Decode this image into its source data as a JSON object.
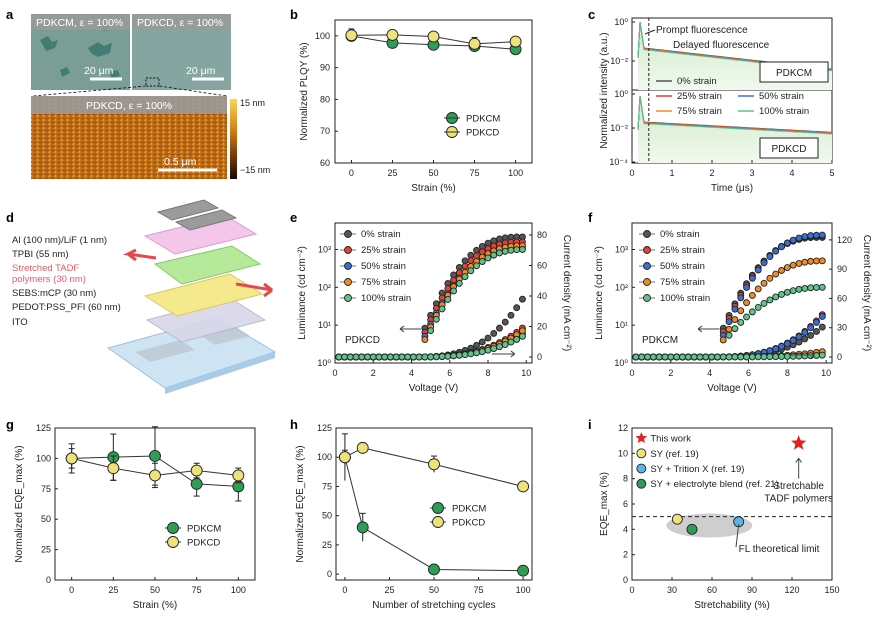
{
  "panel_labels": {
    "a": "a",
    "b": "b",
    "c": "c",
    "d": "d",
    "e": "e",
    "f": "f",
    "g": "g",
    "h": "h",
    "i": "i"
  },
  "colors": {
    "green": "#2e9e57",
    "yellow": "#efe27a",
    "black_series": "#555555",
    "red_series": "#e2413a",
    "blue_series": "#3a6fd1",
    "orange_series": "#f08a22",
    "lightgreen_series": "#5fc38a",
    "red_star": "#e32222",
    "sky": "#5bb4e6",
    "afm_low": "#3a1a05",
    "afm_high": "#f3c12d"
  },
  "panel_a": {
    "img1_label": "PDKCM, ε = 100%",
    "img2_label": "PDKCD, ε = 100%",
    "scale1": "20 μm",
    "scale2": "20 μm",
    "afm_label": "PDKCD, ε = 100%",
    "afm_scale": "0.5 μm",
    "cbar_top": "15 nm",
    "cbar_bottom": "−15 nm"
  },
  "panel_d": {
    "layers": [
      {
        "text": "Al (100 nm)/LiF (1 nm)",
        "color": "#222"
      },
      {
        "text": "TPBI (55 nm)",
        "color": "#222"
      },
      {
        "text": "Stretched TADF",
        "color": "#e85a6a"
      },
      {
        "text": "polymers (30 nm)",
        "color": "#e85a6a"
      },
      {
        "text": "SEBS:mCP (30 nm)",
        "color": "#222"
      },
      {
        "text": "PEDOT:PSS_PFI (60 nm)",
        "color": "#222"
      },
      {
        "text": "ITO",
        "color": "#222"
      }
    ]
  },
  "chart_data": [
    {
      "id": "b",
      "type": "line",
      "xlabel": "Strain (%)",
      "ylabel": "Normalized PLQY (%)",
      "xlim": [
        -10,
        110
      ],
      "ylim": [
        60,
        105
      ],
      "xticks": [
        "0",
        "25",
        "50",
        "75",
        "100"
      ],
      "yticks": [
        "60",
        "70",
        "80",
        "90",
        "100"
      ],
      "series": [
        {
          "name": "PDKCM",
          "x": [
            0,
            25,
            50,
            75,
            100
          ],
          "y": [
            100,
            97.8,
            97.2,
            96.8,
            95.8
          ],
          "err": [
            1.5,
            1,
            1,
            1,
            1
          ],
          "color": "#2e9e57"
        },
        {
          "name": "PDKCD",
          "x": [
            0,
            25,
            50,
            75,
            100
          ],
          "y": [
            100.2,
            100.3,
            99.8,
            97.5,
            98.2
          ],
          "err": [
            2,
            1.5,
            1,
            2,
            1.5
          ],
          "color": "#efe27a"
        }
      ],
      "legend_position": "lower-right"
    },
    {
      "id": "c",
      "type": "line",
      "xlabel": "Time (μs)",
      "ylabel": "Normalized intensity (a.u.)",
      "xlim": [
        0,
        5
      ],
      "xticks": [
        "0",
        "1",
        "2",
        "3",
        "4",
        "5"
      ],
      "yticks_top": [
        "10⁰",
        "10⁻²"
      ],
      "yticks_bottom": [
        "10⁰",
        "10⁻²",
        "10⁻⁴"
      ],
      "labels": {
        "prompt": "Prompt fluorescence",
        "delayed": "Delayed fluorescence",
        "top_box": "PDKCM",
        "bottom_box": "PDKCD"
      },
      "series": [
        {
          "name": "0% strain",
          "color": "#555555"
        },
        {
          "name": "25% strain",
          "color": "#e2413a"
        },
        {
          "name": "75% strain",
          "color": "#f08a22"
        },
        {
          "name": "50% strain",
          "color": "#3a6fd1"
        },
        {
          "name": "100% strain",
          "color": "#5fc38a"
        }
      ]
    },
    {
      "id": "e",
      "type": "line",
      "xlabel": "Voltage (V)",
      "ylabel": "Luminance (cd cm⁻²)",
      "y2label": "Current density (mA cm⁻²)",
      "xlim": [
        0,
        10.3
      ],
      "ylim_log": [
        0,
        3.7
      ],
      "y2lim": [
        0,
        80
      ],
      "xticks": [
        "0",
        "2",
        "4",
        "6",
        "8",
        "10"
      ],
      "yticks": [
        "10⁰",
        "10¹",
        "10²",
        "10³"
      ],
      "y2ticks": [
        "0",
        "20",
        "40",
        "60",
        "80"
      ],
      "label": "PDKCD",
      "series": [
        {
          "name": "0% strain",
          "color": "#555555",
          "Lmax": 3.33,
          "Jmax": 42
        },
        {
          "name": "25% strain",
          "color": "#e2413a",
          "Lmax": 3.2,
          "Jmax": 21
        },
        {
          "name": "50% strain",
          "color": "#3a6fd1",
          "Lmax": 3.05,
          "Jmax": 17
        },
        {
          "name": "75% strain",
          "color": "#f08a22",
          "Lmax": 3.1,
          "Jmax": 19
        },
        {
          "name": "100% strain",
          "color": "#5fc38a",
          "Lmax": 3.0,
          "Jmax": 15
        }
      ]
    },
    {
      "id": "f",
      "type": "line",
      "xlabel": "Voltage (V)",
      "ylabel": "Luminance (cd cm⁻²)",
      "y2label": "Current density (mA cm⁻²)",
      "xlim": [
        0,
        10.3
      ],
      "ylim_log": [
        0,
        3.7
      ],
      "y2lim": [
        0,
        125
      ],
      "xticks": [
        "0",
        "2",
        "4",
        "6",
        "8",
        "10"
      ],
      "yticks": [
        "10⁰",
        "10¹",
        "10²",
        "10³"
      ],
      "y2ticks": [
        "0",
        "30",
        "60",
        "90",
        "120"
      ],
      "label": "PDKCM",
      "series": [
        {
          "name": "0% strain",
          "color": "#555555",
          "Lmax": 3.32,
          "Jmax": 34
        },
        {
          "name": "25% strain",
          "color": "#e2413a",
          "Lmax": 3.36,
          "Jmax": 48
        },
        {
          "name": "50% strain",
          "color": "#3a6fd1",
          "Lmax": 3.38,
          "Jmax": 46
        },
        {
          "name": "75% strain",
          "color": "#f08a22",
          "Lmax": 2.7,
          "Jmax": 6
        },
        {
          "name": "100% strain",
          "color": "#5fc38a",
          "Lmax": 2.0,
          "Jmax": 2
        }
      ]
    },
    {
      "id": "g",
      "type": "line",
      "xlabel": "Strain (%)",
      "ylabel": "Normalized EQE_max (%)",
      "xlim": [
        -10,
        110
      ],
      "ylim": [
        0,
        125
      ],
      "xticks": [
        "0",
        "25",
        "50",
        "75",
        "100"
      ],
      "yticks": [
        "0",
        "25",
        "50",
        "75",
        "100",
        "125"
      ],
      "series": [
        {
          "name": "PDKCM",
          "x": [
            0,
            25,
            50,
            75,
            100
          ],
          "y": [
            100,
            101,
            102,
            79,
            77
          ],
          "err": [
            12,
            19,
            24,
            10,
            12
          ],
          "color": "#2e9e57"
        },
        {
          "name": "PDKCD",
          "x": [
            0,
            25,
            50,
            75,
            100
          ],
          "y": [
            100,
            92,
            86,
            90,
            86
          ],
          "err": [
            8,
            10,
            10,
            6,
            6
          ],
          "color": "#efe27a"
        }
      ],
      "legend_position": "lower-right"
    },
    {
      "id": "h",
      "type": "line",
      "xlabel": "Number of stretching cycles",
      "ylabel": "Normalized EQE_max (%)",
      "xlim": [
        -5,
        105
      ],
      "ylim": [
        -5,
        125
      ],
      "xticks": [
        "0",
        "25",
        "50",
        "75",
        "100"
      ],
      "yticks": [
        "0",
        "25",
        "50",
        "75",
        "100",
        "125"
      ],
      "series": [
        {
          "name": "PDKCM",
          "x": [
            0,
            10,
            50,
            100
          ],
          "y": [
            100,
            40,
            4,
            3
          ],
          "err": [
            20,
            12,
            2,
            2
          ],
          "color": "#2e9e57"
        },
        {
          "name": "PDKCD",
          "x": [
            0,
            10,
            50,
            100
          ],
          "y": [
            100,
            108,
            94,
            75
          ],
          "err": [
            6,
            4,
            7,
            3
          ],
          "color": "#efe27a"
        }
      ],
      "legend_position": "center-right"
    },
    {
      "id": "i",
      "type": "scatter",
      "xlabel": "Stretchability (%)",
      "ylabel": "EQE_max (%)",
      "xlim": [
        0,
        150
      ],
      "ylim": [
        0,
        12
      ],
      "xticks": [
        "0",
        "30",
        "60",
        "90",
        "120",
        "150"
      ],
      "yticks": [
        "0",
        "2",
        "4",
        "6",
        "8",
        "10",
        "12"
      ],
      "theoretical_limit": 5,
      "points": [
        {
          "name": "This work",
          "x": 125,
          "y": 10.8,
          "shape": "star",
          "color": "#e32222"
        },
        {
          "name": "SY (ref. 19)",
          "x": 34,
          "y": 4.8,
          "shape": "circle",
          "color": "#efe27a"
        },
        {
          "name": "SY + Trition X (ref. 19)",
          "x": 80,
          "y": 4.6,
          "shape": "circle",
          "color": "#5bb4e6"
        },
        {
          "name": "SY + electrolyte blend (ref. 21)",
          "x": 45,
          "y": 4.0,
          "shape": "circle",
          "color": "#2e9e57"
        }
      ],
      "annotations": {
        "fl_limit": "FL theoretical limit",
        "stretchable_1": "Stretchable",
        "stretchable_2": "TADF polymers"
      }
    }
  ]
}
